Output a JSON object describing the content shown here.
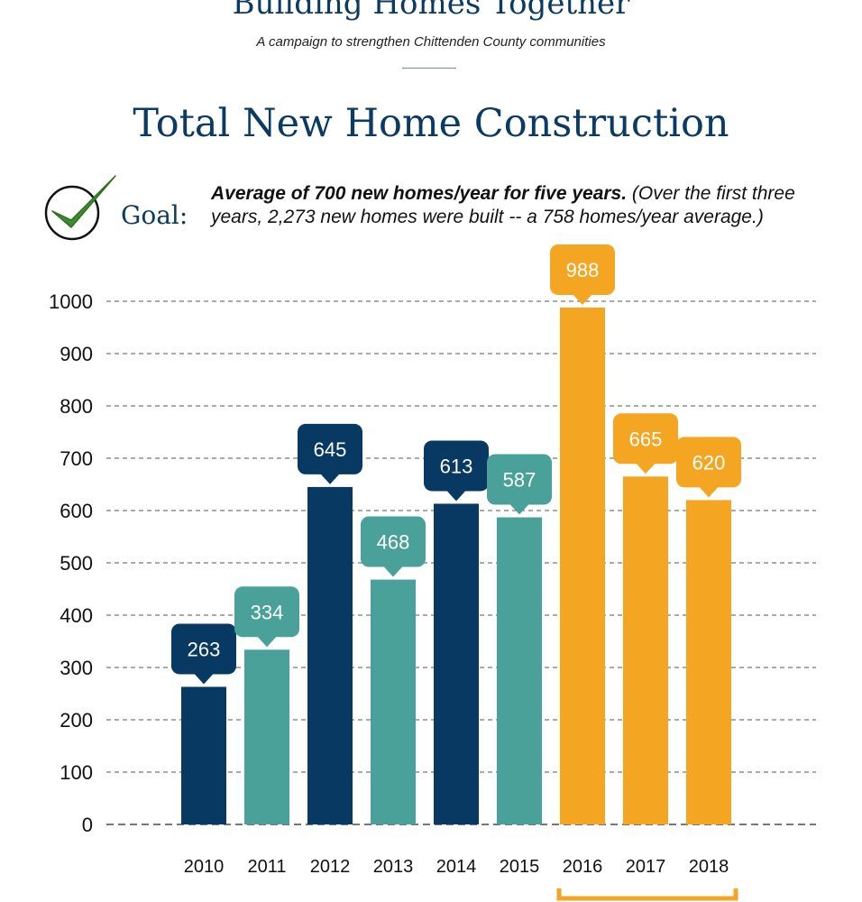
{
  "header": {
    "campaign_title": "Building Homes Together",
    "campaign_subtitle": "A campaign to strengthen Chittenden County communities",
    "page_title": "Total New Home Construction"
  },
  "goal": {
    "label": "Goal:",
    "bold_text": "Average of 700 new homes/year for five years.",
    "note_text": " (Over the first three years, 2,273 new homes were built -- a 758 homes/year average.)",
    "icon": "check-circle-icon"
  },
  "chart_data": {
    "type": "bar",
    "title": "Total New Home Construction",
    "categories": [
      "2010",
      "2011",
      "2012",
      "2013",
      "2014",
      "2015",
      "2016",
      "2017",
      "2018"
    ],
    "values": [
      263,
      334,
      645,
      468,
      613,
      587,
      988,
      665,
      620
    ],
    "data_labels": [
      "263",
      "334",
      "645",
      "468",
      "613",
      "587",
      "988",
      "665",
      "620"
    ],
    "bar_colors": [
      "#083963",
      "#4aa199",
      "#083963",
      "#4aa199",
      "#083963",
      "#4aa199",
      "#f4a623",
      "#f4a623",
      "#f4a623"
    ],
    "ylim": [
      0,
      1000
    ],
    "yticks": [
      0,
      100,
      200,
      300,
      400,
      500,
      600,
      700,
      800,
      900,
      1000
    ],
    "ytick_labels": [
      "0",
      "100",
      "200",
      "300",
      "400",
      "500",
      "600",
      "700",
      "800",
      "900",
      "1000"
    ],
    "grid": true,
    "grid_style": "dashed",
    "xlabel": "",
    "ylabel": "",
    "bracket_range": [
      "2016",
      "2018"
    ],
    "bracket_color": "#f4a623"
  }
}
